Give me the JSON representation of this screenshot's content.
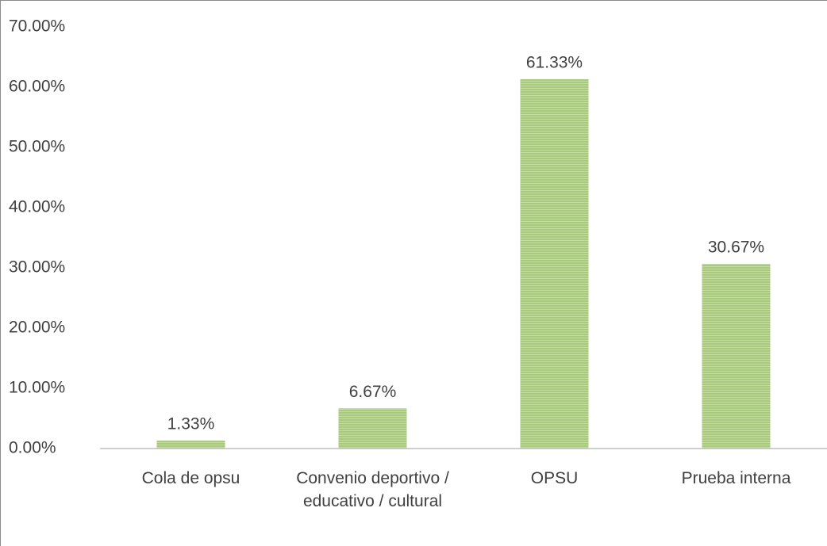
{
  "chart_data": {
    "type": "bar",
    "categories": [
      "Cola de opsu",
      "Convenio deportivo / educativo / cultural",
      "OPSU",
      "Prueba interna"
    ],
    "values": [
      1.33,
      6.67,
      61.33,
      30.67
    ],
    "value_labels": [
      "1.33%",
      "6.67%",
      "61.33%",
      "30.67%"
    ],
    "color": "#a9c97c",
    "ylim": [
      0,
      70
    ],
    "yticks": [
      {
        "value": 0,
        "label": "0.00%"
      },
      {
        "value": 10,
        "label": "10.00%"
      },
      {
        "value": 20,
        "label": "20.00%"
      },
      {
        "value": 30,
        "label": "30.00%"
      },
      {
        "value": 40,
        "label": "40.00%"
      },
      {
        "value": 50,
        "label": "50.00%"
      },
      {
        "value": 60,
        "label": "60.00%"
      },
      {
        "value": 70,
        "label": "70.00%"
      }
    ],
    "grid": false
  }
}
